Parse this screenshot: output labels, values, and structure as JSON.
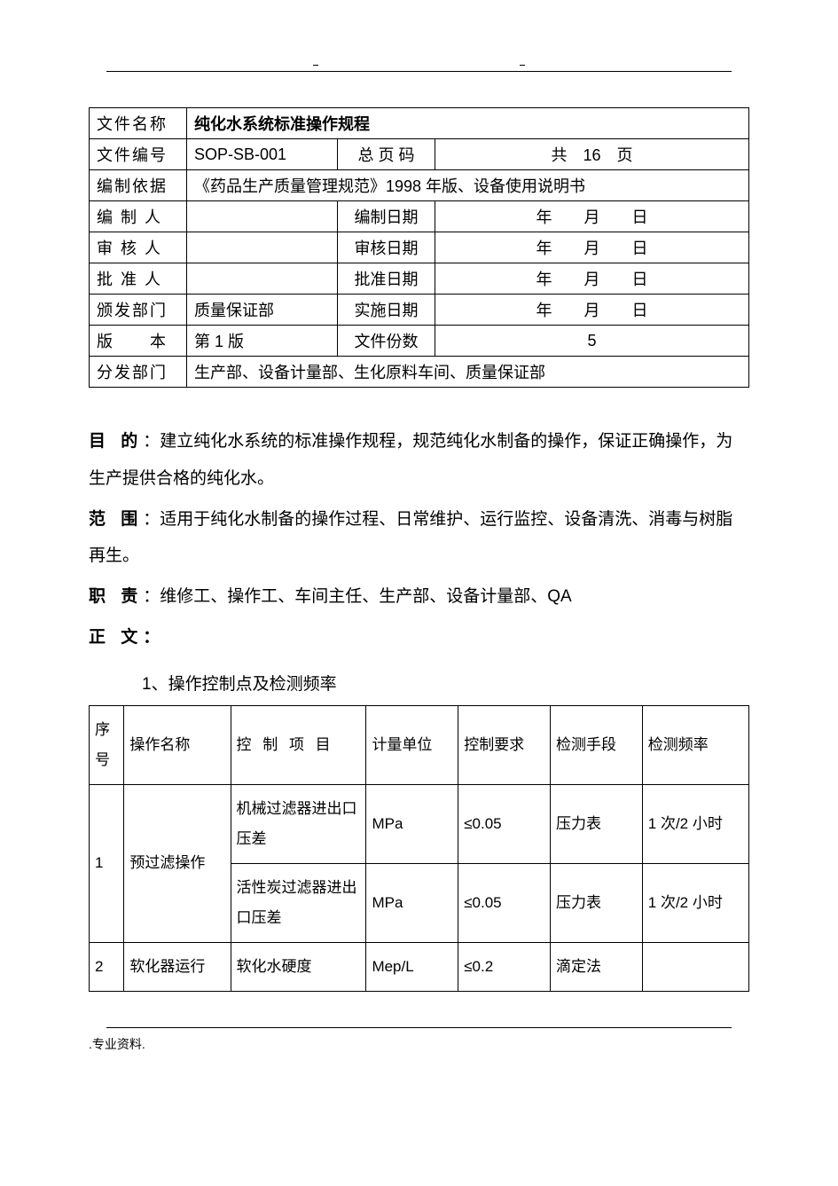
{
  "meta": {
    "rows": [
      {
        "label": "文件名称",
        "value": "纯化水系统标准操作规程",
        "bold": true,
        "span": 3
      },
      {
        "label": "文件编号",
        "value": "SOP-SB-001",
        "mid_label": "总 页 码",
        "right": "共　16　页"
      },
      {
        "label": "编制依据",
        "value": "《药品生产质量管理规范》1998 年版、设备使用说明书",
        "span": 3
      },
      {
        "label": "编 制 人",
        "value": "",
        "mid_label": "编制日期",
        "right": "年　　月　　日"
      },
      {
        "label": "审 核 人",
        "value": "",
        "mid_label": "审核日期",
        "right": "年　　月　　日"
      },
      {
        "label": "批 准 人",
        "value": "",
        "mid_label": "批准日期",
        "right": "年　　月　　日"
      },
      {
        "label": "颁发部门",
        "value": "质量保证部",
        "mid_label": "实施日期",
        "right": "年　　月　　日"
      },
      {
        "label": "版　　本",
        "value": "第 1 版",
        "mid_label": "文件份数",
        "right": "5"
      },
      {
        "label": "分发部门",
        "value": "生产部、设备计量部、生化原料车间、质量保证部",
        "span": 3
      }
    ]
  },
  "sections": {
    "purpose_label": "目 的",
    "purpose_text": "：建立纯化水系统的标准操作规程，规范纯化水制备的操作，保证正确操作，为生产提供合格的纯化水。",
    "scope_label": "范 围",
    "scope_text": "：适用于纯化水制备的操作过程、日常维护、运行监控、设备清洗、消毒与树脂再生。",
    "duty_label": "职 责",
    "duty_text": "：维修工、操作工、车间主任、生产部、设备计量部、QA",
    "body_label": "正 文",
    "body_colon": "：",
    "item1": "1、操作控制点及检测频率"
  },
  "data_table": {
    "headers": [
      "序号",
      "操作名称",
      "控 制 项 目",
      "计量单位",
      "控制要求",
      "检测手段",
      "检测频率"
    ],
    "rows": [
      {
        "seq": "1",
        "op": "预过滤操作",
        "ctrl": "机械过滤器进出口压差",
        "unit": "MPa",
        "req": "≤0.05",
        "means": "压力表",
        "freq": "1 次/2 小时",
        "rowspan_op": 2,
        "rowspan_seq": 2
      },
      {
        "ctrl": "活性炭过滤器进出口压差",
        "unit": "MPa",
        "req": "≤0.05",
        "means": "压力表",
        "freq": "1 次/2 小时"
      },
      {
        "seq": "2",
        "op": "软化器运行",
        "ctrl": "软化水硬度",
        "unit": "Mep/L",
        "req": "≤0.2",
        "means": "滴定法",
        "freq": ""
      }
    ]
  },
  "footer": ".专业资料."
}
